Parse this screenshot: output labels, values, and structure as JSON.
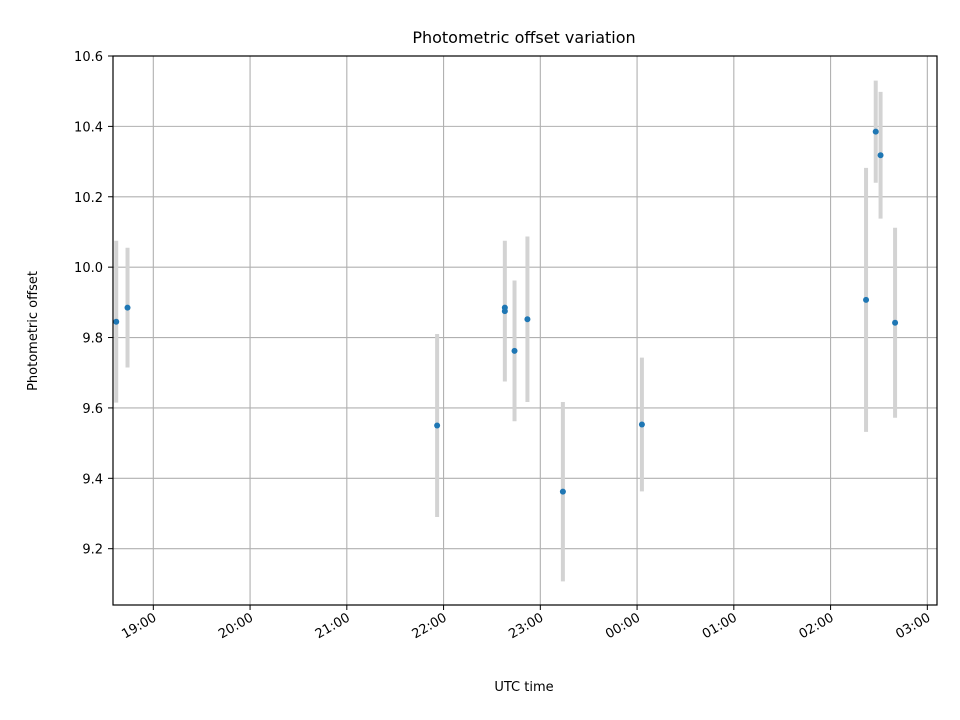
{
  "chart_data": {
    "type": "scatter",
    "title": "Photometric offset variation",
    "xlabel": "UTC time",
    "ylabel": "Photometric offset",
    "x_axis": {
      "kind": "time",
      "range": [
        "18:35",
        "03:06"
      ],
      "ticks": [
        "19:00",
        "20:00",
        "21:00",
        "22:00",
        "23:00",
        "00:00",
        "01:00",
        "02:00",
        "03:00"
      ]
    },
    "y_axis": {
      "range": [
        9.04,
        10.6
      ],
      "ticks": [
        "9.2",
        "9.4",
        "9.6",
        "9.8",
        "10.0",
        "10.2",
        "10.4",
        "10.6"
      ]
    },
    "grid": true,
    "point_color": "#1f77b4",
    "errorbar_color": "#d3d3d3",
    "series": [
      {
        "points": [
          {
            "x": "18:37",
            "y": 9.845,
            "err": 0.23
          },
          {
            "x": "18:44",
            "y": 9.885,
            "err": 0.17
          },
          {
            "x": "21:56",
            "y": 9.55,
            "err": 0.26
          },
          {
            "x": "22:38",
            "y": 9.875,
            "err": 0.2
          },
          {
            "x": "22:38",
            "y": 9.885,
            "err": 0.0
          },
          {
            "x": "22:44",
            "y": 9.762,
            "err": 0.2
          },
          {
            "x": "22:52",
            "y": 9.852,
            "err": 0.235
          },
          {
            "x": "23:14",
            "y": 9.362,
            "err": 0.255
          },
          {
            "x": "00:03",
            "y": 9.553,
            "err": 0.19
          },
          {
            "x": "02:22",
            "y": 9.907,
            "err": 0.375
          },
          {
            "x": "02:28",
            "y": 10.385,
            "err": 0.145
          },
          {
            "x": "02:31",
            "y": 10.318,
            "err": 0.18
          },
          {
            "x": "02:40",
            "y": 9.842,
            "err": 0.27
          }
        ]
      }
    ]
  }
}
